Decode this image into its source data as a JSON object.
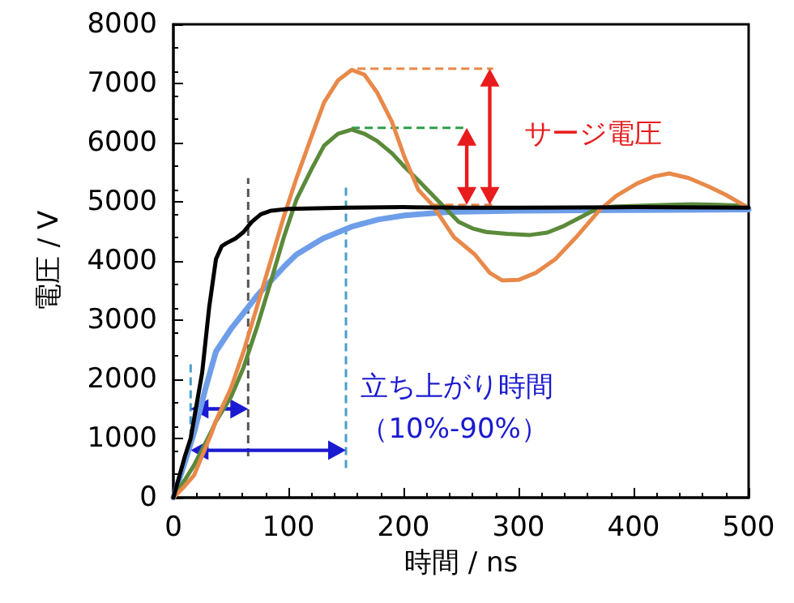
{
  "chart_data": {
    "type": "line",
    "xlabel": "時間 / ns",
    "ylabel": "電圧 / V",
    "xlim": [
      0,
      500
    ],
    "xticks": [
      0,
      100,
      200,
      300,
      400,
      500
    ],
    "ylim": [
      0,
      8000
    ],
    "yticks": [
      0,
      1000,
      2000,
      3000,
      4000,
      5000,
      6000,
      7000,
      8000
    ],
    "grid": false,
    "marker": "none",
    "line_style": "solid",
    "annotations": [
      "サージ電圧",
      "立ち上がり時間",
      "（10%-90%）"
    ],
    "series": [
      {
        "color": "#6e9ee8",
        "x": [
          0,
          10,
          18,
          28,
          37,
          50,
          61,
          73,
          85,
          96,
          107,
          130,
          155,
          178,
          201,
          240,
          300,
          400,
          500
        ],
        "values": [
          0,
          600,
          1100,
          1850,
          2470,
          2850,
          3120,
          3420,
          3670,
          3900,
          4110,
          4380,
          4580,
          4700,
          4770,
          4830,
          4850,
          4860,
          4870
        ]
      },
      {
        "color": "#5a8a3a",
        "x": [
          0,
          10,
          18,
          33,
          37,
          50,
          61,
          73,
          85,
          96,
          107,
          120,
          131,
          143,
          155,
          166,
          177,
          190,
          201,
          213,
          225,
          237,
          248,
          260,
          272,
          290,
          310,
          325,
          338,
          355,
          370,
          385,
          403,
          430,
          451,
          475,
          497
        ],
        "values": [
          0,
          300,
          550,
          1120,
          1290,
          1700,
          2200,
          2900,
          3670,
          4400,
          5040,
          5550,
          5950,
          6150,
          6220,
          6150,
          6030,
          5820,
          5590,
          5360,
          5120,
          4880,
          4660,
          4550,
          4490,
          4460,
          4440,
          4480,
          4580,
          4750,
          4900,
          4920,
          4930,
          4950,
          4960,
          4950,
          4930
        ]
      },
      {
        "color": "#e8894a",
        "x": [
          0,
          10,
          18,
          33,
          37,
          50,
          61,
          73,
          85,
          96,
          107,
          120,
          131,
          143,
          155,
          166,
          177,
          190,
          201,
          213,
          225,
          244,
          262,
          275,
          286,
          300,
          315,
          332,
          350,
          370,
          385,
          403,
          418,
          431,
          448,
          465,
          480,
          497
        ],
        "values": [
          0,
          200,
          380,
          1080,
          1300,
          1850,
          2470,
          3250,
          4030,
          4750,
          5400,
          6100,
          6680,
          7050,
          7230,
          7150,
          6850,
          6350,
          5750,
          5200,
          4950,
          4400,
          4110,
          3800,
          3670,
          3680,
          3800,
          4030,
          4400,
          4850,
          5100,
          5310,
          5430,
          5480,
          5400,
          5260,
          5120,
          4930
        ]
      },
      {
        "color": "#000000",
        "x": [
          0,
          10,
          15,
          25,
          31,
          37,
          42,
          46,
          54,
          61,
          68,
          76,
          85,
          100,
          150,
          200,
          250,
          300,
          400,
          500
        ],
        "values": [
          0,
          700,
          1000,
          2110,
          3200,
          4030,
          4250,
          4300,
          4380,
          4490,
          4660,
          4790,
          4850,
          4880,
          4900,
          4910,
          4900,
          4900,
          4910,
          4900
        ]
      }
    ]
  }
}
